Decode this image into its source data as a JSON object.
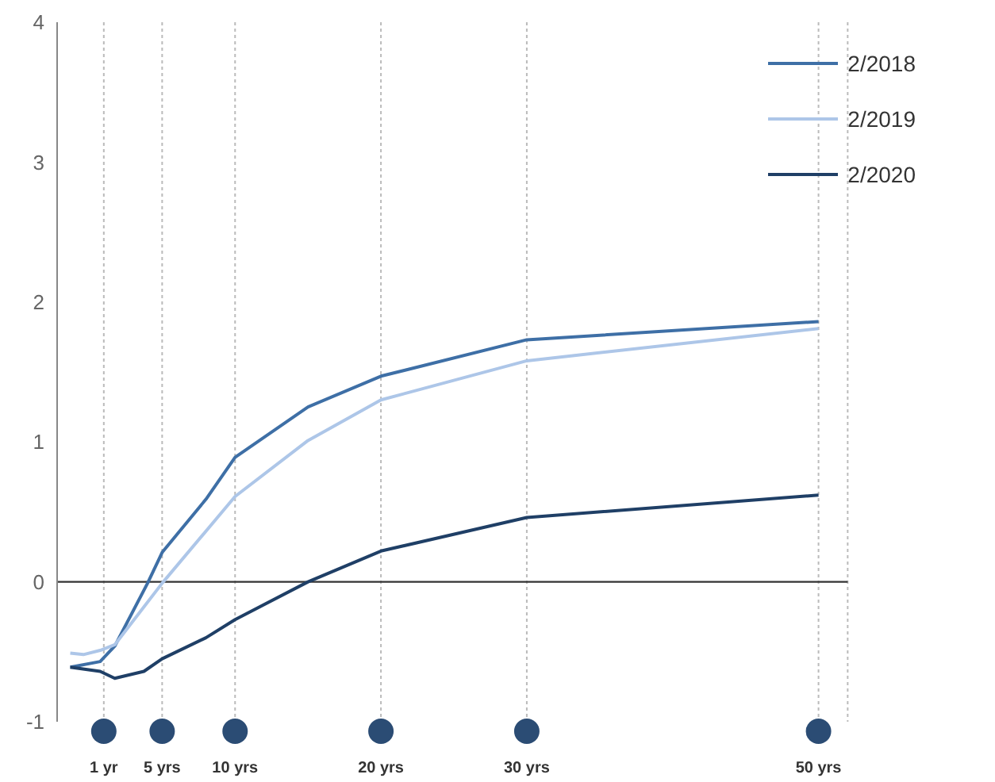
{
  "chart_data": {
    "type": "line",
    "series": [
      {
        "name": "2/2018",
        "color": "#3e6fa6",
        "x": [
          -1.3,
          0.75,
          1.75,
          4,
          5,
          8,
          10,
          15,
          20,
          30,
          50
        ],
        "values": [
          -0.61,
          -0.57,
          -0.46,
          -0.01,
          0.21,
          0.59,
          0.89,
          1.25,
          1.47,
          1.73,
          1.86
        ]
      },
      {
        "name": "2/2019",
        "color": "#adc6e8",
        "x": [
          -1.3,
          -0.4,
          0.75,
          1.75,
          5,
          10,
          15,
          20,
          30,
          50
        ],
        "values": [
          -0.51,
          -0.52,
          -0.49,
          -0.45,
          -0.01,
          0.61,
          1.01,
          1.3,
          1.58,
          1.81
        ]
      },
      {
        "name": "2/2020",
        "color": "#1f3f66",
        "x": [
          -1.3,
          0.75,
          1.75,
          3.75,
          5,
          8,
          10,
          15,
          20,
          30,
          50
        ],
        "values": [
          -0.61,
          -0.64,
          -0.69,
          -0.64,
          -0.55,
          -0.4,
          -0.27,
          0,
          0.22,
          0.46,
          0.62
        ]
      }
    ],
    "xlim": [
      -2.2,
      52
    ],
    "xticks": [
      {
        "value": 1,
        "label": "1 yr"
      },
      {
        "value": 5,
        "label": "5 yrs"
      },
      {
        "value": 10,
        "label": "10 yrs"
      },
      {
        "value": 20,
        "label": "20 yrs"
      },
      {
        "value": 30,
        "label": "30 yrs"
      },
      {
        "value": 50,
        "label": "50 yrs"
      }
    ],
    "ylim": [
      -1,
      4
    ],
    "yticks": [
      -1,
      0,
      1,
      2,
      3,
      4
    ],
    "ref_lines": [
      {
        "axis": "y",
        "value": 0,
        "color": "#333333"
      }
    ],
    "grid": "x",
    "legend": "top right",
    "marker": "none",
    "line_style": "solid"
  }
}
